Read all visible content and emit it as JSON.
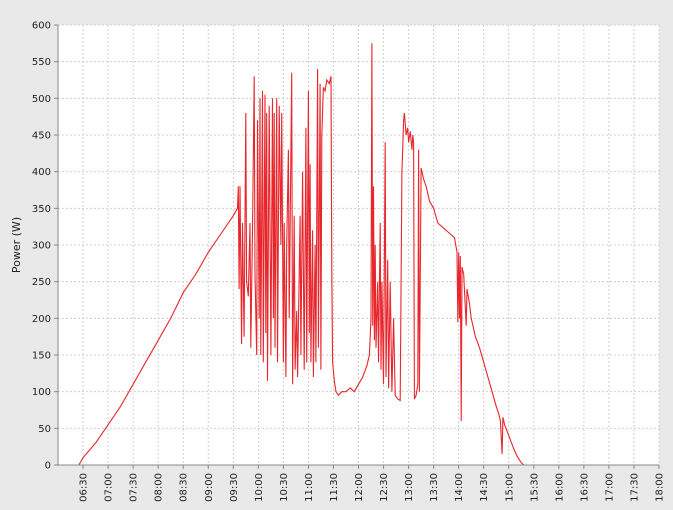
{
  "chart_data": {
    "type": "line",
    "title": "",
    "xlabel": "",
    "ylabel": "Power (W)",
    "ylim": [
      0,
      600
    ],
    "xlim": [
      "06:00",
      "18:00"
    ],
    "y_ticks": [
      "0",
      "50",
      "100",
      "150",
      "200",
      "250",
      "300",
      "350",
      "400",
      "450",
      "500",
      "550",
      "600"
    ],
    "x_ticks": [
      "06:30",
      "07:00",
      "07:30",
      "08:00",
      "08:30",
      "09:00",
      "09:30",
      "10:00",
      "10:30",
      "11:00",
      "11:30",
      "12:00",
      "12:30",
      "13:00",
      "13:30",
      "14:00",
      "14:30",
      "15:00",
      "15:30",
      "16:00",
      "16:30",
      "17:00",
      "17:30",
      "18:00"
    ],
    "grid": true,
    "colors": {
      "line": "#e8262b",
      "background": "#e9e9e9",
      "plot": "#ffffff",
      "grid": "#cfcfcf"
    },
    "series": [
      {
        "points": [
          [
            "06:00",
            0
          ],
          [
            "06:25",
            0
          ],
          [
            "06:30",
            10
          ],
          [
            "06:45",
            30
          ],
          [
            "07:00",
            55
          ],
          [
            "07:15",
            80
          ],
          [
            "07:30",
            110
          ],
          [
            "07:45",
            140
          ],
          [
            "08:00",
            170
          ],
          [
            "08:15",
            200
          ],
          [
            "08:30",
            235
          ],
          [
            "08:45",
            260
          ],
          [
            "09:00",
            290
          ],
          [
            "09:15",
            315
          ],
          [
            "09:30",
            340
          ],
          [
            "09:35",
            350
          ],
          [
            "09:36",
            380
          ],
          [
            "09:37",
            240
          ],
          [
            "09:38",
            380
          ],
          [
            "09:40",
            165
          ],
          [
            "09:41",
            330
          ],
          [
            "09:43",
            175
          ],
          [
            "09:45",
            480
          ],
          [
            "09:46",
            250
          ],
          [
            "09:48",
            230
          ],
          [
            "09:50",
            330
          ],
          [
            "09:51",
            160
          ],
          [
            "09:53",
            320
          ],
          [
            "09:55",
            530
          ],
          [
            "09:56",
            260
          ],
          [
            "09:58",
            150
          ],
          [
            "09:59",
            470
          ],
          [
            "10:01",
            200
          ],
          [
            "10:02",
            500
          ],
          [
            "10:03",
            150
          ],
          [
            "10:05",
            510
          ],
          [
            "10:06",
            140
          ],
          [
            "10:08",
            505
          ],
          [
            "10:09",
            180
          ],
          [
            "10:10",
            480
          ],
          [
            "10:11",
            115
          ],
          [
            "10:13",
            490
          ],
          [
            "10:15",
            150
          ],
          [
            "10:17",
            500
          ],
          [
            "10:18",
            200
          ],
          [
            "10:19",
            480
          ],
          [
            "10:20",
            160
          ],
          [
            "10:22",
            500
          ],
          [
            "10:23",
            140
          ],
          [
            "10:25",
            490
          ],
          [
            "10:27",
            300
          ],
          [
            "10:28",
            480
          ],
          [
            "10:30",
            140
          ],
          [
            "10:31",
            330
          ],
          [
            "10:33",
            120
          ],
          [
            "10:34",
            300
          ],
          [
            "10:36",
            430
          ],
          [
            "10:37",
            200
          ],
          [
            "10:40",
            535
          ],
          [
            "10:41",
            110
          ],
          [
            "10:43",
            340
          ],
          [
            "10:44",
            130
          ],
          [
            "10:46",
            210
          ],
          [
            "10:47",
            120
          ],
          [
            "10:50",
            340
          ],
          [
            "10:51",
            150
          ],
          [
            "10:53",
            400
          ],
          [
            "10:55",
            130
          ],
          [
            "10:57",
            460
          ],
          [
            "10:58",
            140
          ],
          [
            "11:00",
            510
          ],
          [
            "11:01",
            180
          ],
          [
            "11:02",
            410
          ],
          [
            "11:03",
            140
          ],
          [
            "11:05",
            320
          ],
          [
            "11:06",
            120
          ],
          [
            "11:08",
            300
          ],
          [
            "11:09",
            140
          ],
          [
            "11:11",
            540
          ],
          [
            "11:12",
            160
          ],
          [
            "11:14",
            520
          ],
          [
            "11:15",
            130
          ],
          [
            "11:16",
            450
          ],
          [
            "11:18",
            515
          ],
          [
            "11:20",
            510
          ],
          [
            "11:22",
            525
          ],
          [
            "11:25",
            520
          ],
          [
            "11:27",
            530
          ],
          [
            "11:28",
            260
          ],
          [
            "11:29",
            140
          ],
          [
            "11:31",
            115
          ],
          [
            "11:33",
            100
          ],
          [
            "11:36",
            95
          ],
          [
            "11:40",
            100
          ],
          [
            "11:45",
            100
          ],
          [
            "11:50",
            105
          ],
          [
            "11:55",
            100
          ],
          [
            "12:00",
            110
          ],
          [
            "12:05",
            120
          ],
          [
            "12:10",
            135
          ],
          [
            "12:13",
            150
          ],
          [
            "12:15",
            200
          ],
          [
            "12:16",
            575
          ],
          [
            "12:17",
            190
          ],
          [
            "12:18",
            380
          ],
          [
            "12:19",
            170
          ],
          [
            "12:20",
            300
          ],
          [
            "12:21",
            160
          ],
          [
            "12:23",
            250
          ],
          [
            "12:24",
            140
          ],
          [
            "12:26",
            330
          ],
          [
            "12:27",
            130
          ],
          [
            "12:28",
            250
          ],
          [
            "12:30",
            110
          ],
          [
            "12:32",
            440
          ],
          [
            "12:33",
            120
          ],
          [
            "12:35",
            280
          ],
          [
            "12:36",
            105
          ],
          [
            "12:38",
            250
          ],
          [
            "12:40",
            100
          ],
          [
            "12:42",
            200
          ],
          [
            "12:44",
            95
          ],
          [
            "12:47",
            90
          ],
          [
            "12:50",
            88
          ],
          [
            "12:52",
            400
          ],
          [
            "12:53",
            430
          ],
          [
            "12:54",
            470
          ],
          [
            "12:55",
            480
          ],
          [
            "12:57",
            450
          ],
          [
            "12:59",
            460
          ],
          [
            "13:00",
            440
          ],
          [
            "13:02",
            455
          ],
          [
            "13:04",
            430
          ],
          [
            "13:05",
            450
          ],
          [
            "13:06",
            440
          ],
          [
            "13:07",
            90
          ],
          [
            "13:09",
            95
          ],
          [
            "13:11",
            110
          ],
          [
            "13:12",
            430
          ],
          [
            "13:13",
            100
          ],
          [
            "13:15",
            405
          ],
          [
            "13:18",
            390
          ],
          [
            "13:21",
            380
          ],
          [
            "13:25",
            360
          ],
          [
            "13:30",
            350
          ],
          [
            "13:35",
            330
          ],
          [
            "13:40",
            325
          ],
          [
            "13:45",
            320
          ],
          [
            "13:50",
            315
          ],
          [
            "13:55",
            310
          ],
          [
            "13:58",
            290
          ],
          [
            "13:59",
            195
          ],
          [
            "14:00",
            290
          ],
          [
            "14:01",
            200
          ],
          [
            "14:02",
            285
          ],
          [
            "14:03",
            60
          ],
          [
            "14:04",
            270
          ],
          [
            "14:06",
            260
          ],
          [
            "14:09",
            190
          ],
          [
            "14:10",
            240
          ],
          [
            "14:13",
            220
          ],
          [
            "14:15",
            200
          ],
          [
            "14:18",
            185
          ],
          [
            "14:20",
            175
          ],
          [
            "14:25",
            160
          ],
          [
            "14:30",
            140
          ],
          [
            "14:35",
            120
          ],
          [
            "14:40",
            100
          ],
          [
            "14:45",
            80
          ],
          [
            "14:48",
            70
          ],
          [
            "14:50",
            60
          ],
          [
            "14:52",
            15
          ],
          [
            "14:53",
            65
          ],
          [
            "14:55",
            55
          ],
          [
            "15:00",
            40
          ],
          [
            "15:05",
            25
          ],
          [
            "15:10",
            12
          ],
          [
            "15:15",
            3
          ],
          [
            "15:18",
            0
          ],
          [
            "15:25",
            0
          ]
        ]
      }
    ]
  }
}
